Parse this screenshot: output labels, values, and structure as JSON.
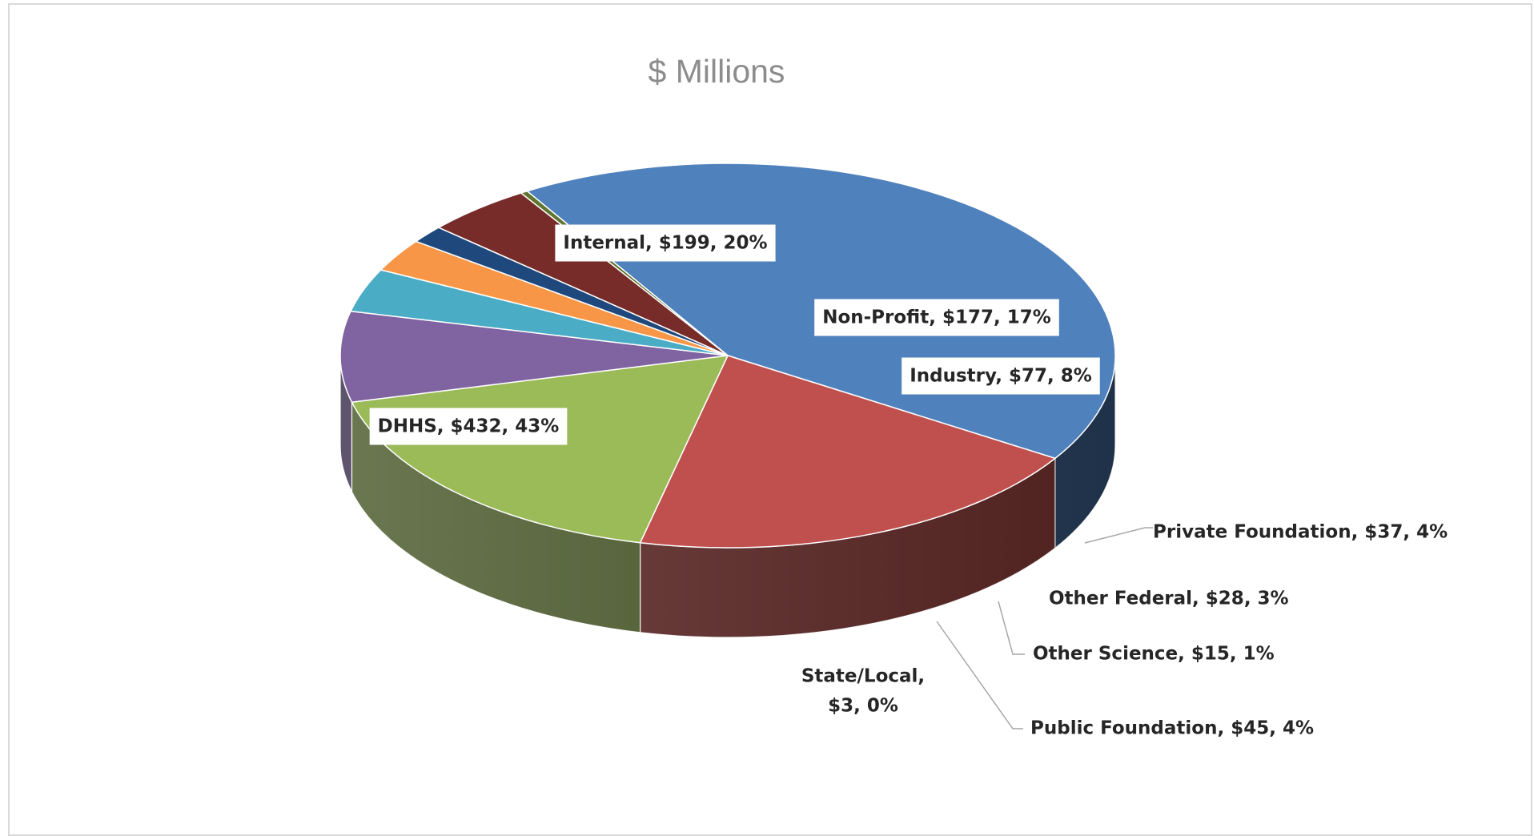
{
  "chart_data": {
    "type": "pie",
    "title": "$ Millions",
    "slices": [
      {
        "label": "DHHS",
        "value": 432,
        "percent": "43%",
        "text": "DHHS, $432, 43%",
        "color": "#4F81BD",
        "dark": "#243A56",
        "boxed": true
      },
      {
        "label": "Internal",
        "value": 199,
        "percent": "20%",
        "text": "Internal, $199, 20%",
        "color": "#C0504D",
        "dark": "#5C2624",
        "boxed": true
      },
      {
        "label": "Non-Profit",
        "value": 177,
        "percent": "17%",
        "text": "Non-Profit, $177, 17%",
        "color": "#9BBB59",
        "dark": "#4A5A2A",
        "boxed": true
      },
      {
        "label": "Industry",
        "value": 77,
        "percent": "8%",
        "text": "Industry, $77, 8%",
        "color": "#8064A2",
        "dark": "#3C2F4D",
        "boxed": true
      },
      {
        "label": "Private Foundation",
        "value": 37,
        "percent": "4%",
        "text": "Private Foundation,  $37, 4%",
        "color": "#4BACC6",
        "dark": "#1F4A55",
        "boxed": false
      },
      {
        "label": "Other Federal",
        "value": 28,
        "percent": "3%",
        "text": "Other Federal, $28, 3%",
        "color": "#F79646",
        "dark": "#6E3E17",
        "boxed": false
      },
      {
        "label": "Other Science",
        "value": 15,
        "percent": "1%",
        "text": "Other Science, $15, 1%",
        "color": "#1F497D",
        "dark": "#0E1F35",
        "boxed": false
      },
      {
        "label": "Public Foundation",
        "value": 45,
        "percent": "4%",
        "text": "Public Foundation,  $45, 4%",
        "color": "#772C2A",
        "dark": "#351312",
        "boxed": false
      },
      {
        "label": "State/Local",
        "value": 3,
        "percent": "0%",
        "text_lines": [
          "State/Local,",
          "$3, 0%"
        ],
        "color": "#5F7530",
        "dark": "#2B3516",
        "boxed": false
      }
    ]
  }
}
